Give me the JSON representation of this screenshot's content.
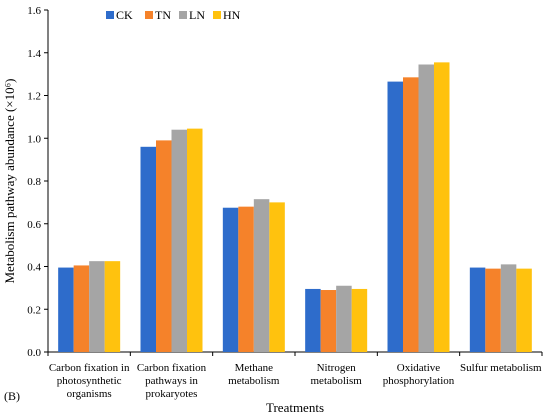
{
  "chart_data": {
    "type": "bar",
    "panel_label": "(B)",
    "xlabel": "Treatments",
    "ylabel": "Metabolism pathway abundance (×10⁶)",
    "ylim": [
      0,
      1.6
    ],
    "yticks": [
      "0.0",
      "0.2",
      "0.4",
      "0.6",
      "0.8",
      "1.0",
      "1.2",
      "1.4",
      "1.6"
    ],
    "categories": [
      [
        "Carbon fixation in",
        "photosynthetic",
        "organisms"
      ],
      [
        "Carbon fixation",
        "pathways in",
        "prokaryotes"
      ],
      [
        "Methane",
        "metabolism"
      ],
      [
        "Nitrogen",
        "metabolism"
      ],
      [
        "Oxidative",
        "phosphorylation"
      ],
      [
        "Sulfur metabolism"
      ]
    ],
    "legend_position": "top",
    "series": [
      {
        "name": "CK",
        "color": "#2E6CCB",
        "values": [
          0.395,
          0.96,
          0.675,
          0.295,
          1.265,
          0.395
        ]
      },
      {
        "name": "TN",
        "color": "#F5822A",
        "values": [
          0.405,
          0.99,
          0.68,
          0.29,
          1.285,
          0.39
        ]
      },
      {
        "name": "LN",
        "color": "#A5A5A5",
        "values": [
          0.425,
          1.04,
          0.715,
          0.31,
          1.345,
          0.41
        ]
      },
      {
        "name": "HN",
        "color": "#FFC20E",
        "values": [
          0.425,
          1.045,
          0.7,
          0.295,
          1.355,
          0.39
        ]
      }
    ]
  }
}
